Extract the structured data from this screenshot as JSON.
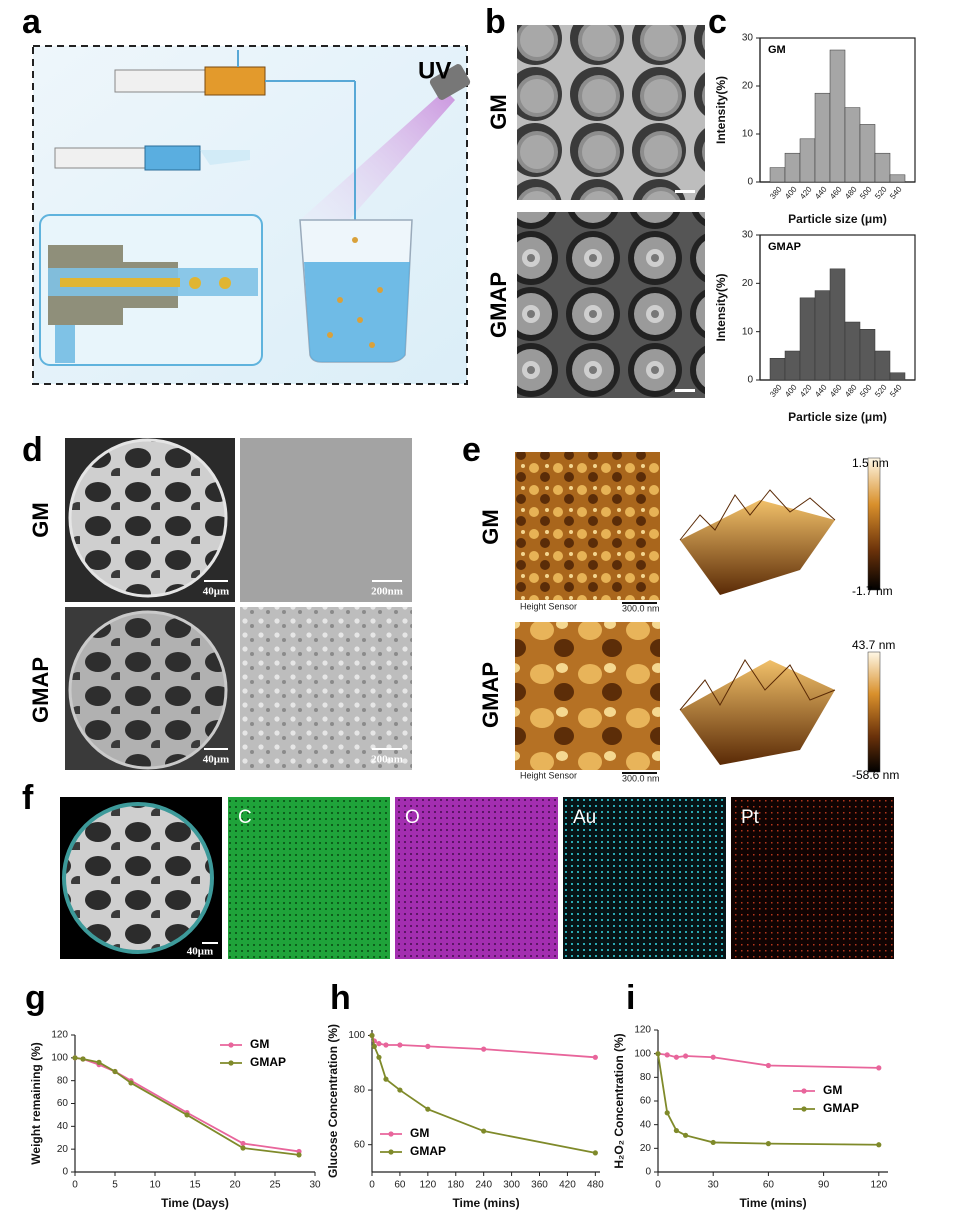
{
  "panel_labels": [
    "a",
    "b",
    "c",
    "d",
    "e",
    "f",
    "g",
    "h",
    "i"
  ],
  "a": {
    "light_label": "UV"
  },
  "b": {
    "rows": [
      "GM",
      "GMAP"
    ]
  },
  "d": {
    "rows": [
      "GM",
      "GMAP"
    ],
    "scale_bars": [
      "40μm",
      "200nm",
      "40μm",
      "200nm"
    ]
  },
  "e": {
    "rows": [
      "GM",
      "GMAP"
    ],
    "images": [
      {
        "caption": "Height Sensor",
        "scale": "300.0 nm",
        "max": "1.5 nm",
        "min": "-1.7 nm"
      },
      {
        "caption": "Height Sensor",
        "scale": "300.0 nm",
        "max": "43.7 nm",
        "min": "-58.6 nm"
      }
    ]
  },
  "f": {
    "elements": [
      "C",
      "O",
      "Au",
      "Pt"
    ],
    "scale_bar": "40μm"
  },
  "chart_data": [
    {
      "type": "bar",
      "title": "GM",
      "x_label": "Particle size (μm)",
      "y_label": "Intensity(%)",
      "categories": [
        380,
        400,
        420,
        440,
        460,
        480,
        500,
        520,
        540
      ],
      "values": [
        3,
        6,
        9,
        18.5,
        27.5,
        15.5,
        12,
        6,
        1.5
      ],
      "color": "#a6a6a6",
      "ylim": [
        0,
        30
      ],
      "yticks": [
        0,
        10,
        20,
        30
      ]
    },
    {
      "type": "bar",
      "title": "GMAP",
      "x_label": "Particle size (μm)",
      "y_label": "Intensity(%)",
      "categories": [
        380,
        400,
        420,
        440,
        460,
        480,
        500,
        520,
        540
      ],
      "values": [
        4.5,
        6,
        17,
        18.5,
        23,
        12,
        10.5,
        6,
        1.5
      ],
      "color": "#595959",
      "ylim": [
        0,
        30
      ],
      "yticks": [
        0,
        10,
        20,
        30
      ]
    },
    {
      "type": "line",
      "x_label": "Time (Days)",
      "y_label": "Weight remaining (%)",
      "x": [
        0,
        1,
        3,
        5,
        7,
        14,
        21,
        28
      ],
      "series": [
        {
          "name": "GM",
          "color": "#e8659b",
          "values": [
            100,
            99,
            94,
            88,
            80,
            52,
            25,
            18
          ]
        },
        {
          "name": "GMAP",
          "color": "#7f8a2a",
          "values": [
            100,
            99,
            96,
            88,
            78,
            50,
            21,
            15
          ]
        }
      ],
      "xlim": [
        0,
        30
      ],
      "xticks": [
        0,
        5,
        10,
        15,
        20,
        25,
        30
      ],
      "ylim": [
        0,
        120
      ],
      "yticks": [
        0,
        20,
        40,
        60,
        80,
        100,
        120
      ],
      "legend": "upper right"
    },
    {
      "type": "line",
      "x_label": "Time (mins)",
      "y_label": "Glucose Concentration (%)",
      "x": [
        0,
        5,
        15,
        30,
        60,
        120,
        240,
        480
      ],
      "series": [
        {
          "name": "GM",
          "color": "#e8659b",
          "values": [
            100,
            98,
            97,
            96.5,
            96.5,
            96,
            95,
            92
          ]
        },
        {
          "name": "GMAP",
          "color": "#7f8a2a",
          "values": [
            100,
            96,
            92,
            84,
            80,
            73,
            65,
            57
          ]
        }
      ],
      "xlim": [
        0,
        490
      ],
      "xticks": [
        0,
        60,
        120,
        180,
        240,
        300,
        360,
        420,
        480
      ],
      "ylim": [
        50,
        102
      ],
      "yticks": [
        60,
        80,
        100
      ],
      "legend": "lower left"
    },
    {
      "type": "line",
      "x_label": "Time (mins)",
      "y_label": "H₂O₂ Concentration (%)",
      "x": [
        0,
        5,
        10,
        15,
        30,
        60,
        120
      ],
      "series": [
        {
          "name": "GM",
          "color": "#e8659b",
          "values": [
            100,
            99,
            97,
            98,
            97,
            90,
            88
          ]
        },
        {
          "name": "GMAP",
          "color": "#7f8a2a",
          "values": [
            100,
            50,
            35,
            31,
            25,
            24,
            23
          ]
        }
      ],
      "xlim": [
        0,
        125
      ],
      "xticks": [
        0,
        30,
        60,
        90,
        120
      ],
      "ylim": [
        0,
        120
      ],
      "yticks": [
        0,
        20,
        40,
        60,
        80,
        100,
        120
      ],
      "legend": "center right"
    }
  ]
}
